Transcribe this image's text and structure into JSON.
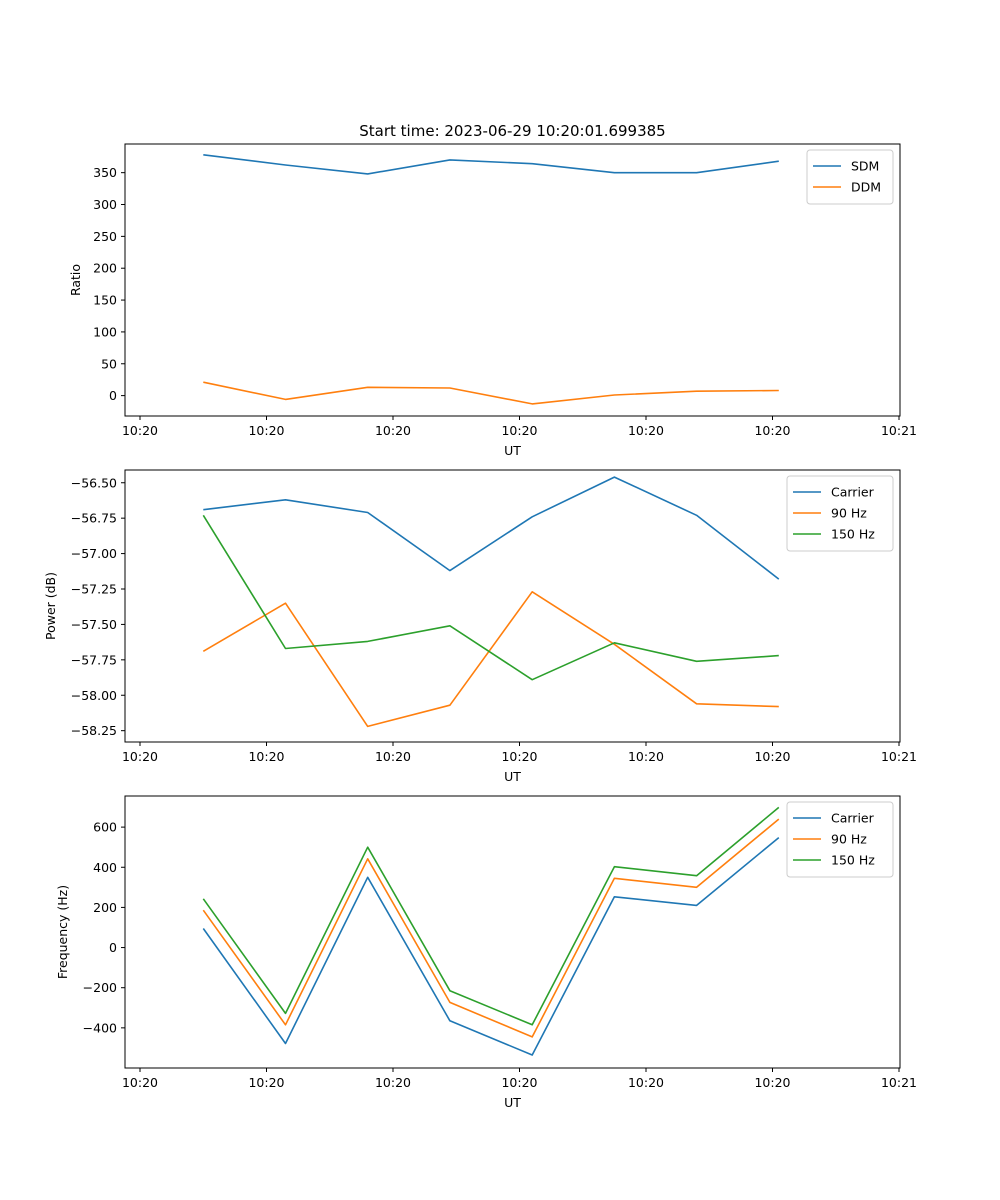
{
  "figure": {
    "title": "Start time: 2023-06-29 10:20:01.699385",
    "colors": {
      "blue": "#1f77b4",
      "orange": "#ff7f0e",
      "green": "#2ca02c"
    }
  },
  "chart_data": [
    {
      "type": "line",
      "xlabel": "UT",
      "ylabel": "Ratio",
      "xlim": [
        0,
        6
      ],
      "ylim": [
        -32,
        395
      ],
      "x_ticks": [
        0,
        1,
        2,
        3,
        4,
        5,
        6
      ],
      "x_tick_labels": [
        "10:20",
        "10:20",
        "10:20",
        "10:20",
        "10:20",
        "10:20",
        "10:21"
      ],
      "y_ticks": [
        0,
        50,
        100,
        150,
        200,
        250,
        300,
        350
      ],
      "y_tick_labels": [
        "0",
        "50",
        "100",
        "150",
        "200",
        "250",
        "300",
        "350"
      ],
      "x": [
        0.5,
        1.15,
        1.8,
        2.45,
        3.1,
        3.75,
        4.4,
        5.05
      ],
      "series": [
        {
          "name": "SDM",
          "color": "#1f77b4",
          "values": [
            378,
            362,
            348,
            370,
            364,
            350,
            350,
            368
          ]
        },
        {
          "name": "DDM",
          "color": "#ff7f0e",
          "values": [
            21,
            -6,
            13,
            12,
            -13,
            1,
            7,
            8
          ]
        }
      ],
      "legend": "top-right",
      "grid": false
    },
    {
      "type": "line",
      "xlabel": "UT",
      "ylabel": "Power (dB)",
      "xlim": [
        0,
        6
      ],
      "ylim": [
        -58.33,
        -56.41
      ],
      "x_ticks": [
        0,
        1,
        2,
        3,
        4,
        5,
        6
      ],
      "x_tick_labels": [
        "10:20",
        "10:20",
        "10:20",
        "10:20",
        "10:20",
        "10:20",
        "10:21"
      ],
      "y_ticks": [
        -58.25,
        -58.0,
        -57.75,
        -57.5,
        -57.25,
        -57.0,
        -56.75,
        -56.5
      ],
      "y_tick_labels": [
        "−58.25",
        "−58.00",
        "−57.75",
        "−57.50",
        "−57.25",
        "−57.00",
        "−56.75",
        "−56.50"
      ],
      "x": [
        0.5,
        1.15,
        1.8,
        2.45,
        3.1,
        3.75,
        4.4,
        5.05
      ],
      "series": [
        {
          "name": "Carrier",
          "color": "#1f77b4",
          "values": [
            -56.69,
            -56.62,
            -56.71,
            -57.12,
            -56.74,
            -56.46,
            -56.73,
            -57.18
          ]
        },
        {
          "name": "90 Hz",
          "color": "#ff7f0e",
          "values": [
            -57.69,
            -57.35,
            -58.22,
            -58.07,
            -57.27,
            -57.64,
            -58.06,
            -58.08
          ]
        },
        {
          "name": "150 Hz",
          "color": "#2ca02c",
          "values": [
            -56.73,
            -57.67,
            -57.62,
            -57.51,
            -57.89,
            -57.63,
            -57.76,
            -57.72
          ]
        }
      ],
      "legend": "top-right",
      "grid": false
    },
    {
      "type": "line",
      "xlabel": "UT",
      "ylabel": "Frequency (Hz)",
      "xlim": [
        0,
        6
      ],
      "ylim": [
        -600,
        755
      ],
      "x_ticks": [
        0,
        1,
        2,
        3,
        4,
        5,
        6
      ],
      "x_tick_labels": [
        "10:20",
        "10:20",
        "10:20",
        "10:20",
        "10:20",
        "10:20",
        "10:21"
      ],
      "y_ticks": [
        -400,
        -200,
        0,
        200,
        400,
        600
      ],
      "y_tick_labels": [
        "−400",
        "−200",
        "0",
        "200",
        "400",
        "600"
      ],
      "x": [
        0.5,
        1.15,
        1.8,
        2.45,
        3.1,
        3.75,
        4.4,
        5.05
      ],
      "series": [
        {
          "name": "Carrier",
          "color": "#1f77b4",
          "values": [
            95,
            -478,
            350,
            -365,
            -535,
            253,
            210,
            548
          ]
        },
        {
          "name": "90 Hz",
          "color": "#ff7f0e",
          "values": [
            186,
            -385,
            442,
            -273,
            -445,
            345,
            300,
            640
          ]
        },
        {
          "name": "150 Hz",
          "color": "#2ca02c",
          "values": [
            243,
            -328,
            500,
            -215,
            -385,
            403,
            358,
            698
          ]
        }
      ],
      "legend": "top-right",
      "grid": false
    }
  ]
}
